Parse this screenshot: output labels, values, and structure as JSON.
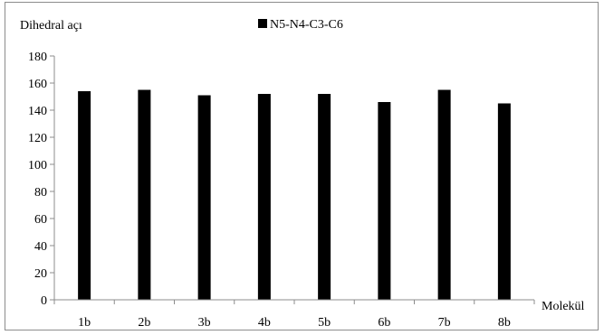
{
  "chart_data": {
    "type": "bar",
    "ylabel": "Dihedral açı",
    "xlabel": "Molekül",
    "categories": [
      "1b",
      "2b",
      "3b",
      "4b",
      "5b",
      "6b",
      "7b",
      "8b"
    ],
    "series": [
      {
        "name": "N5-N4-C3-C6",
        "values": [
          154,
          155,
          151,
          152,
          152,
          146,
          155,
          145
        ],
        "color": "#000000"
      }
    ],
    "ylim": [
      0,
      180
    ],
    "yticks": [
      0,
      20,
      40,
      60,
      80,
      100,
      120,
      140,
      160,
      180
    ],
    "grid": false,
    "legend": "top-center"
  }
}
